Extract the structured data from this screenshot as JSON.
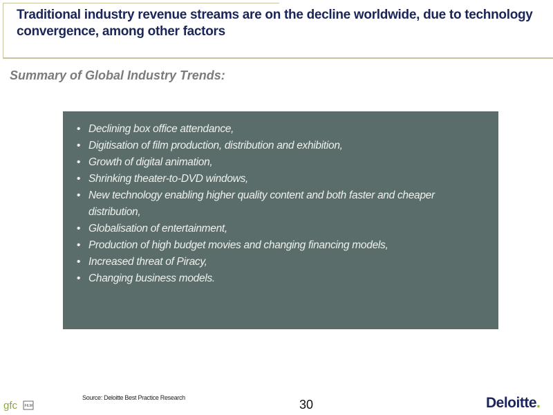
{
  "slide": {
    "title": "Traditional industry revenue streams are on the decline worldwide, due to technology convergence, among other factors",
    "subtitle": "Summary of Global Industry Trends:",
    "trends": [
      "Declining box office attendance,",
      "Digitisation of film production, distribution and exhibition,",
      "Growth of digital animation,",
      "Shrinking theater-to-DVD windows,",
      "New technology enabling higher quality content and both  faster and cheaper distribution,",
      "Globalisation of entertainment,",
      "Production of high budget movies and changing financing models,",
      "Increased threat of Piracy,",
      "Changing business models."
    ]
  },
  "footer": {
    "source": "Source: Deloitte Best Practice Research",
    "page_number": "30",
    "left_logo_text": "gfc",
    "left_logo_subtext": "FILM",
    "brand": "Deloitte",
    "brand_dot": "."
  },
  "colors": {
    "title": "#1b2559",
    "panel": "#5b6d6b",
    "frame_line": "#c8c39a",
    "deloitte_green": "#86bc25"
  }
}
